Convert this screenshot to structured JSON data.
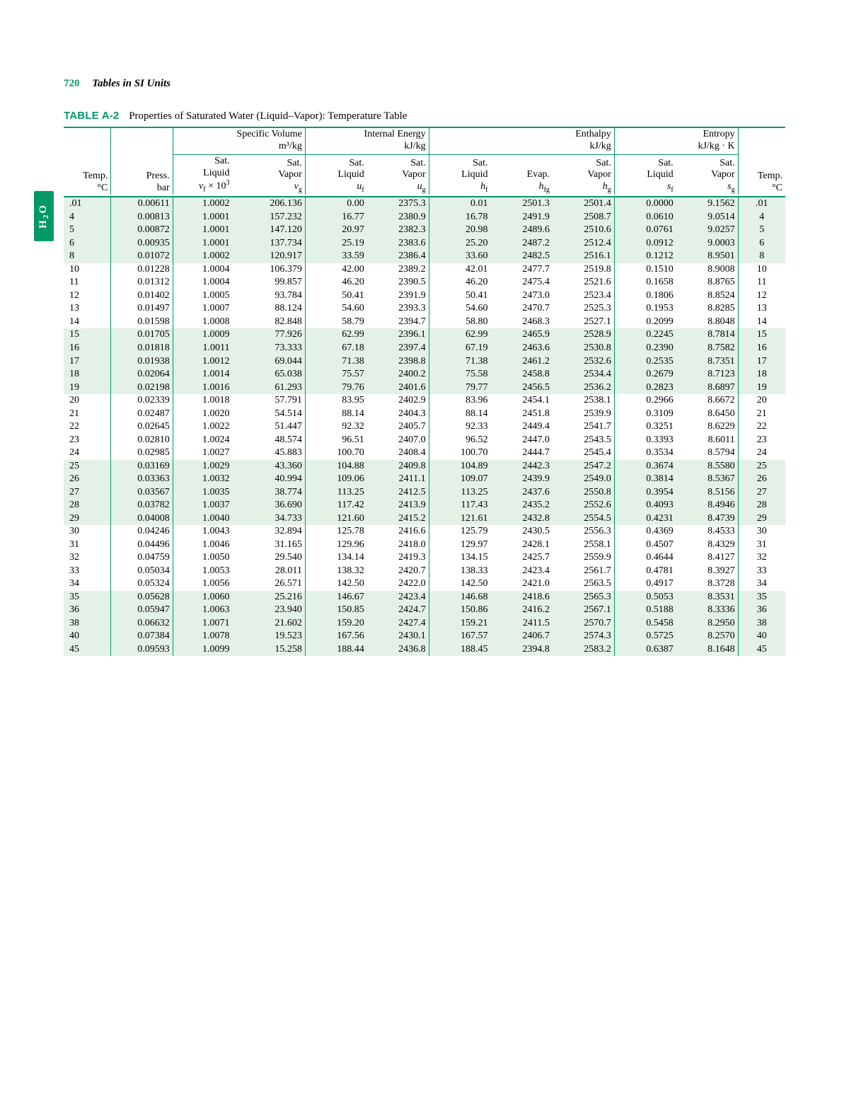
{
  "page": {
    "number": "720",
    "running_title": "Tables in SI Units",
    "table_label": "TABLE A-2",
    "table_title": "Properties of Saturated Water (Liquid–Vapor): Temperature Table",
    "side_tab": "H₂O"
  },
  "header": {
    "groups": {
      "sv": {
        "title": "Specific Volume",
        "unit": "m³/kg"
      },
      "ie": {
        "title": "Internal Energy",
        "unit": "kJ/kg"
      },
      "h": {
        "title": "Enthalpy",
        "unit": "kJ/kg"
      },
      "s": {
        "title": "Entropy",
        "unit": "kJ/kg · K"
      }
    },
    "cols": {
      "temp": {
        "l1": "Temp.",
        "l2": "°C"
      },
      "press": {
        "l1": "Press.",
        "l2": "bar"
      },
      "vf": {
        "l1": "Sat.",
        "l2": "Liquid",
        "sym_base": "v",
        "sym_sub": "f",
        "mult": " × 10",
        "exp": "3"
      },
      "vg": {
        "l1": "Sat.",
        "l2": "Vapor",
        "sym_base": "v",
        "sym_sub": "g"
      },
      "uf": {
        "l1": "Sat.",
        "l2": "Liquid",
        "sym_base": "u",
        "sym_sub": "f"
      },
      "ug": {
        "l1": "Sat.",
        "l2": "Vapor",
        "sym_base": "u",
        "sym_sub": "g"
      },
      "hf": {
        "l1": "Sat.",
        "l2": "Liquid",
        "sym_base": "h",
        "sym_sub": "f"
      },
      "hfg": {
        "l1": "Evap.",
        "sym_base": "h",
        "sym_sub": "fg"
      },
      "hg": {
        "l1": "Sat.",
        "l2": "Vapor",
        "sym_base": "h",
        "sym_sub": "g"
      },
      "sf": {
        "l1": "Sat.",
        "l2": "Liquid",
        "sym_base": "s",
        "sym_sub": "f"
      },
      "sg": {
        "l1": "Sat.",
        "l2": "Vapor",
        "sym_base": "s",
        "sym_sub": "g"
      },
      "temp2": {
        "l1": "Temp.",
        "l2": "°C"
      }
    }
  },
  "blocks": [
    [
      [
        ".01",
        "0.00611",
        "1.0002",
        "206.136",
        "0.00",
        "2375.3",
        "0.01",
        "2501.3",
        "2501.4",
        "0.0000",
        "9.1562",
        ".01"
      ],
      [
        "4",
        "0.00813",
        "1.0001",
        "157.232",
        "16.77",
        "2380.9",
        "16.78",
        "2491.9",
        "2508.7",
        "0.0610",
        "9.0514",
        "4"
      ],
      [
        "5",
        "0.00872",
        "1.0001",
        "147.120",
        "20.97",
        "2382.3",
        "20.98",
        "2489.6",
        "2510.6",
        "0.0761",
        "9.0257",
        "5"
      ],
      [
        "6",
        "0.00935",
        "1.0001",
        "137.734",
        "25.19",
        "2383.6",
        "25.20",
        "2487.2",
        "2512.4",
        "0.0912",
        "9.0003",
        "6"
      ],
      [
        "8",
        "0.01072",
        "1.0002",
        "120.917",
        "33.59",
        "2386.4",
        "33.60",
        "2482.5",
        "2516.1",
        "0.1212",
        "8.9501",
        "8"
      ]
    ],
    [
      [
        "10",
        "0.01228",
        "1.0004",
        "106.379",
        "42.00",
        "2389.2",
        "42.01",
        "2477.7",
        "2519.8",
        "0.1510",
        "8.9008",
        "10"
      ],
      [
        "11",
        "0.01312",
        "1.0004",
        "99.857",
        "46.20",
        "2390.5",
        "46.20",
        "2475.4",
        "2521.6",
        "0.1658",
        "8.8765",
        "11"
      ],
      [
        "12",
        "0.01402",
        "1.0005",
        "93.784",
        "50.41",
        "2391.9",
        "50.41",
        "2473.0",
        "2523.4",
        "0.1806",
        "8.8524",
        "12"
      ],
      [
        "13",
        "0.01497",
        "1.0007",
        "88.124",
        "54.60",
        "2393.3",
        "54.60",
        "2470.7",
        "2525.3",
        "0.1953",
        "8.8285",
        "13"
      ],
      [
        "14",
        "0.01598",
        "1.0008",
        "82.848",
        "58.79",
        "2394.7",
        "58.80",
        "2468.3",
        "2527.1",
        "0.2099",
        "8.8048",
        "14"
      ]
    ],
    [
      [
        "15",
        "0.01705",
        "1.0009",
        "77.926",
        "62.99",
        "2396.1",
        "62.99",
        "2465.9",
        "2528.9",
        "0.2245",
        "8.7814",
        "15"
      ],
      [
        "16",
        "0.01818",
        "1.0011",
        "73.333",
        "67.18",
        "2397.4",
        "67.19",
        "2463.6",
        "2530.8",
        "0.2390",
        "8.7582",
        "16"
      ],
      [
        "17",
        "0.01938",
        "1.0012",
        "69.044",
        "71.38",
        "2398.8",
        "71.38",
        "2461.2",
        "2532.6",
        "0.2535",
        "8.7351",
        "17"
      ],
      [
        "18",
        "0.02064",
        "1.0014",
        "65.038",
        "75.57",
        "2400.2",
        "75.58",
        "2458.8",
        "2534.4",
        "0.2679",
        "8.7123",
        "18"
      ],
      [
        "19",
        "0.02198",
        "1.0016",
        "61.293",
        "79.76",
        "2401.6",
        "79.77",
        "2456.5",
        "2536.2",
        "0.2823",
        "8.6897",
        "19"
      ]
    ],
    [
      [
        "20",
        "0.02339",
        "1.0018",
        "57.791",
        "83.95",
        "2402.9",
        "83.96",
        "2454.1",
        "2538.1",
        "0.2966",
        "8.6672",
        "20"
      ],
      [
        "21",
        "0.02487",
        "1.0020",
        "54.514",
        "88.14",
        "2404.3",
        "88.14",
        "2451.8",
        "2539.9",
        "0.3109",
        "8.6450",
        "21"
      ],
      [
        "22",
        "0.02645",
        "1.0022",
        "51.447",
        "92.32",
        "2405.7",
        "92.33",
        "2449.4",
        "2541.7",
        "0.3251",
        "8.6229",
        "22"
      ],
      [
        "23",
        "0.02810",
        "1.0024",
        "48.574",
        "96.51",
        "2407.0",
        "96.52",
        "2447.0",
        "2543.5",
        "0.3393",
        "8.6011",
        "23"
      ],
      [
        "24",
        "0.02985",
        "1.0027",
        "45.883",
        "100.70",
        "2408.4",
        "100.70",
        "2444.7",
        "2545.4",
        "0.3534",
        "8.5794",
        "24"
      ]
    ],
    [
      [
        "25",
        "0.03169",
        "1.0029",
        "43.360",
        "104.88",
        "2409.8",
        "104.89",
        "2442.3",
        "2547.2",
        "0.3674",
        "8.5580",
        "25"
      ],
      [
        "26",
        "0.03363",
        "1.0032",
        "40.994",
        "109.06",
        "2411.1",
        "109.07",
        "2439.9",
        "2549.0",
        "0.3814",
        "8.5367",
        "26"
      ],
      [
        "27",
        "0.03567",
        "1.0035",
        "38.774",
        "113.25",
        "2412.5",
        "113.25",
        "2437.6",
        "2550.8",
        "0.3954",
        "8.5156",
        "27"
      ],
      [
        "28",
        "0.03782",
        "1.0037",
        "36.690",
        "117.42",
        "2413.9",
        "117.43",
        "2435.2",
        "2552.6",
        "0.4093",
        "8.4946",
        "28"
      ],
      [
        "29",
        "0.04008",
        "1.0040",
        "34.733",
        "121.60",
        "2415.2",
        "121.61",
        "2432.8",
        "2554.5",
        "0.4231",
        "8.4739",
        "29"
      ]
    ],
    [
      [
        "30",
        "0.04246",
        "1.0043",
        "32.894",
        "125.78",
        "2416.6",
        "125.79",
        "2430.5",
        "2556.3",
        "0.4369",
        "8.4533",
        "30"
      ],
      [
        "31",
        "0.04496",
        "1.0046",
        "31.165",
        "129.96",
        "2418.0",
        "129.97",
        "2428.1",
        "2558.1",
        "0.4507",
        "8.4329",
        "31"
      ],
      [
        "32",
        "0.04759",
        "1.0050",
        "29.540",
        "134.14",
        "2419.3",
        "134.15",
        "2425.7",
        "2559.9",
        "0.4644",
        "8.4127",
        "32"
      ],
      [
        "33",
        "0.05034",
        "1.0053",
        "28.011",
        "138.32",
        "2420.7",
        "138.33",
        "2423.4",
        "2561.7",
        "0.4781",
        "8.3927",
        "33"
      ],
      [
        "34",
        "0.05324",
        "1.0056",
        "26.571",
        "142.50",
        "2422.0",
        "142.50",
        "2421.0",
        "2563.5",
        "0.4917",
        "8.3728",
        "34"
      ]
    ],
    [
      [
        "35",
        "0.05628",
        "1.0060",
        "25.216",
        "146.67",
        "2423.4",
        "146.68",
        "2418.6",
        "2565.3",
        "0.5053",
        "8.3531",
        "35"
      ],
      [
        "36",
        "0.05947",
        "1.0063",
        "23.940",
        "150.85",
        "2424.7",
        "150.86",
        "2416.2",
        "2567.1",
        "0.5188",
        "8.3336",
        "36"
      ],
      [
        "38",
        "0.06632",
        "1.0071",
        "21.602",
        "159.20",
        "2427.4",
        "159.21",
        "2411.5",
        "2570.7",
        "0.5458",
        "8.2950",
        "38"
      ],
      [
        "40",
        "0.07384",
        "1.0078",
        "19.523",
        "167.56",
        "2430.1",
        "167.57",
        "2406.7",
        "2574.3",
        "0.5725",
        "8.2570",
        "40"
      ],
      [
        "45",
        "0.09593",
        "1.0099",
        "15.258",
        "188.44",
        "2436.8",
        "188.45",
        "2394.8",
        "2583.2",
        "0.6387",
        "8.1648",
        "45"
      ]
    ]
  ],
  "style": {
    "rule_color": "#009966",
    "shade_color": "#e3f1e7",
    "bg_color": "#ffffff"
  }
}
